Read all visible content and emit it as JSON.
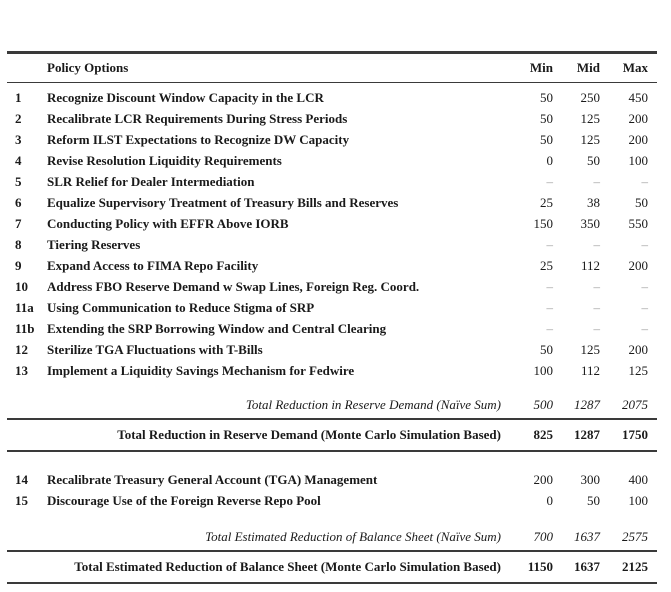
{
  "table": {
    "empty_marker": "–",
    "header": {
      "policy": "Policy Options",
      "min": "Min",
      "mid": "Mid",
      "max": "Max"
    },
    "rows_section1": [
      {
        "num": "1",
        "label": "Recognize Discount Window Capacity in the LCR",
        "min": "50",
        "mid": "250",
        "max": "450"
      },
      {
        "num": "2",
        "label": "Recalibrate LCR Requirements During Stress Periods",
        "min": "50",
        "mid": "125",
        "max": "200"
      },
      {
        "num": "3",
        "label": "Reform ILST Expectations to Recognize DW Capacity",
        "min": "50",
        "mid": "125",
        "max": "200"
      },
      {
        "num": "4",
        "label": "Revise Resolution Liquidity Requirements",
        "min": "0",
        "mid": "50",
        "max": "100"
      },
      {
        "num": "5",
        "label": "SLR Relief for Dealer Intermediation",
        "min": "–",
        "mid": "–",
        "max": "–"
      },
      {
        "num": "6",
        "label": "Equalize Supervisory Treatment of Treasury Bills and Reserves",
        "min": "25",
        "mid": "38",
        "max": "50"
      },
      {
        "num": "7",
        "label": "Conducting Policy with EFFR Above IORB",
        "min": "150",
        "mid": "350",
        "max": "550"
      },
      {
        "num": "8",
        "label": "Tiering Reserves",
        "min": "–",
        "mid": "–",
        "max": "–"
      },
      {
        "num": "9",
        "label": "Expand Access to FIMA Repo Facility",
        "min": "25",
        "mid": "112",
        "max": "200"
      },
      {
        "num": "10",
        "label": "Address FBO Reserve Demand w Swap Lines, Foreign Reg. Coord.",
        "min": "–",
        "mid": "–",
        "max": "–"
      },
      {
        "num": "11a",
        "label": "Using Communication to Reduce Stigma of SRP",
        "min": "–",
        "mid": "–",
        "max": "–"
      },
      {
        "num": "11b",
        "label": "Extending the SRP Borrowing Window and Central Clearing",
        "min": "–",
        "mid": "–",
        "max": "–"
      },
      {
        "num": "12",
        "label": "Sterilize TGA Fluctuations with T-Bills",
        "min": "50",
        "mid": "125",
        "max": "200"
      },
      {
        "num": "13",
        "label": "Implement a Liquidity Savings Mechanism for Fedwire",
        "min": "100",
        "mid": "112",
        "max": "125"
      }
    ],
    "naive_total_1": {
      "label": "Total Reduction in Reserve Demand (Naïve Sum)",
      "min": "500",
      "mid": "1287",
      "max": "2075"
    },
    "mc_total_1": {
      "label": "Total Reduction in Reserve Demand (Monte Carlo Simulation Based)",
      "min": "825",
      "mid": "1287",
      "max": "1750"
    },
    "rows_section2": [
      {
        "num": "14",
        "label": "Recalibrate Treasury General Account (TGA) Management",
        "min": "200",
        "mid": "300",
        "max": "400"
      },
      {
        "num": "15",
        "label": "Discourage Use of the Foreign Reverse Repo Pool",
        "min": "0",
        "mid": "50",
        "max": "100"
      }
    ],
    "naive_total_2": {
      "label": "Total Estimated Reduction of Balance Sheet (Naïve Sum)",
      "min": "700",
      "mid": "1637",
      "max": "2575"
    },
    "mc_total_2": {
      "label": "Total Estimated Reduction of Balance Sheet (Monte Carlo Simulation Based)",
      "min": "1150",
      "mid": "1637",
      "max": "2125"
    }
  },
  "colors": {
    "text": "#1a1a1a",
    "rule": "#3a3a3a",
    "dash": "#9a9a9a"
  }
}
